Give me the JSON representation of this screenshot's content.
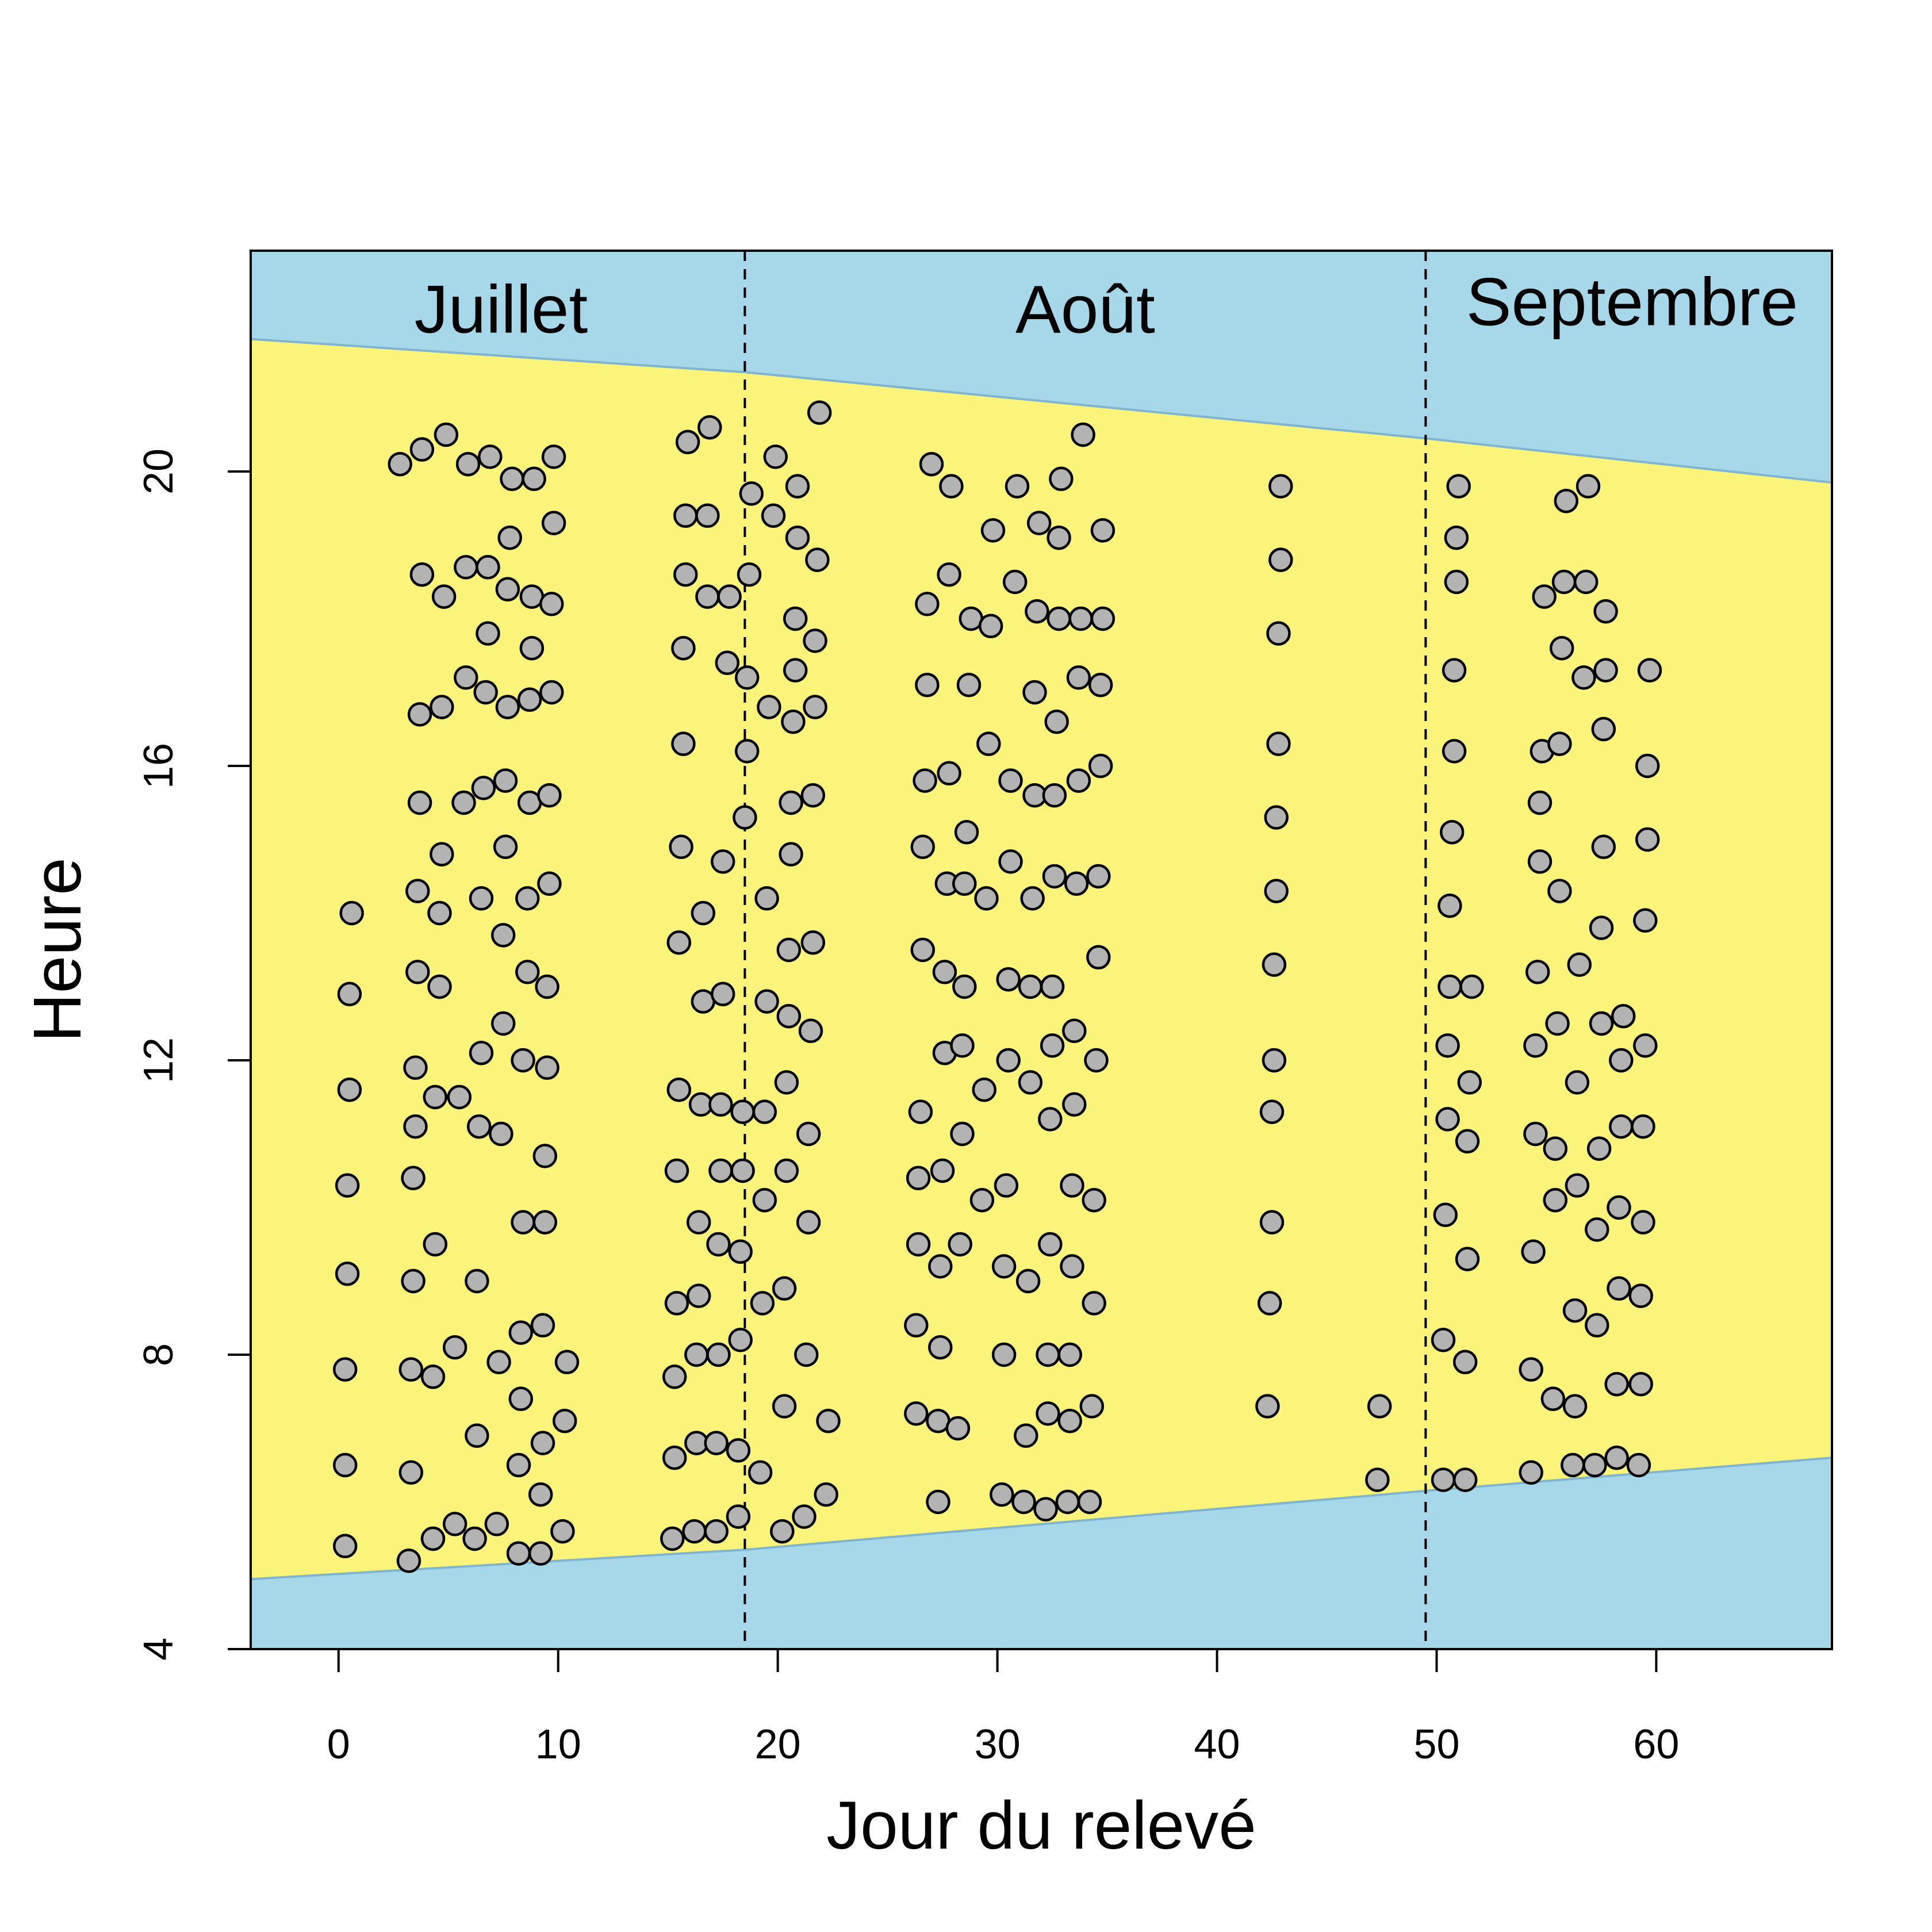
{
  "chart_data": {
    "type": "scatter",
    "xlabel": "Jour du relevé",
    "ylabel": "Heure",
    "xlim": [
      -4,
      68
    ],
    "ylim": [
      4,
      23
    ],
    "x_ticks": [
      0,
      10,
      20,
      30,
      40,
      50,
      60
    ],
    "y_ticks": [
      4,
      8,
      12,
      16,
      20
    ],
    "month_boundaries": [
      18.5,
      49.5
    ],
    "months": [
      {
        "label": "Juillet",
        "x": 7.4,
        "y": 22.2
      },
      {
        "label": "Août",
        "x": 34.0,
        "y": 22.2
      },
      {
        "label": "Septembre",
        "x": 58.9,
        "y": 22.3
      }
    ],
    "daylight": {
      "x": [
        -4,
        18.5,
        49.5,
        68
      ],
      "sunrise": [
        4.95,
        5.35,
        6.15,
        6.6
      ],
      "sunset": [
        21.8,
        21.35,
        20.45,
        19.85
      ]
    },
    "colors": {
      "night": "#a6d8ea",
      "day": "#fbf47a",
      "boundary": "#7fb5d0",
      "point_fill": "#b3b3b3",
      "point_stroke": "#000000"
    },
    "points": [
      [
        0.3,
        5.4
      ],
      [
        0.3,
        6.5
      ],
      [
        0.3,
        7.8
      ],
      [
        0.4,
        9.1
      ],
      [
        0.4,
        10.3
      ],
      [
        0.5,
        11.6
      ],
      [
        0.5,
        12.9
      ],
      [
        0.6,
        14.0
      ],
      [
        2.8,
        20.1
      ],
      [
        3.2,
        5.2
      ],
      [
        3.3,
        6.4
      ],
      [
        3.3,
        7.8
      ],
      [
        3.4,
        9.0
      ],
      [
        3.4,
        10.4
      ],
      [
        3.5,
        11.1
      ],
      [
        3.5,
        11.9
      ],
      [
        3.6,
        13.2
      ],
      [
        3.6,
        14.3
      ],
      [
        3.7,
        15.5
      ],
      [
        3.7,
        16.7
      ],
      [
        3.8,
        18.6
      ],
      [
        3.8,
        20.3
      ],
      [
        4.3,
        5.5
      ],
      [
        4.3,
        7.7
      ],
      [
        4.4,
        9.5
      ],
      [
        4.4,
        11.5
      ],
      [
        4.6,
        13.0
      ],
      [
        4.6,
        14.0
      ],
      [
        4.7,
        14.8
      ],
      [
        4.7,
        16.8
      ],
      [
        4.8,
        18.3
      ],
      [
        4.9,
        20.5
      ],
      [
        5.3,
        5.7
      ],
      [
        5.3,
        8.1
      ],
      [
        5.5,
        11.5
      ],
      [
        5.7,
        15.5
      ],
      [
        5.8,
        17.2
      ],
      [
        5.8,
        18.7
      ],
      [
        5.9,
        20.1
      ],
      [
        6.2,
        5.5
      ],
      [
        6.3,
        6.9
      ],
      [
        6.3,
        9.0
      ],
      [
        6.4,
        11.1
      ],
      [
        6.5,
        12.1
      ],
      [
        6.5,
        14.2
      ],
      [
        6.6,
        15.7
      ],
      [
        6.7,
        17.0
      ],
      [
        6.8,
        17.8
      ],
      [
        6.8,
        18.7
      ],
      [
        6.9,
        20.2
      ],
      [
        7.2,
        5.7
      ],
      [
        7.3,
        7.9
      ],
      [
        7.4,
        11.0
      ],
      [
        7.5,
        12.5
      ],
      [
        7.5,
        13.7
      ],
      [
        7.6,
        14.9
      ],
      [
        7.6,
        15.8
      ],
      [
        7.7,
        16.8
      ],
      [
        7.7,
        18.4
      ],
      [
        7.8,
        19.1
      ],
      [
        7.9,
        19.9
      ],
      [
        8.2,
        5.3
      ],
      [
        8.2,
        6.5
      ],
      [
        8.3,
        7.4
      ],
      [
        8.3,
        8.3
      ],
      [
        8.4,
        9.8
      ],
      [
        8.4,
        12.0
      ],
      [
        8.6,
        13.2
      ],
      [
        8.6,
        14.2
      ],
      [
        8.7,
        15.5
      ],
      [
        8.7,
        16.9
      ],
      [
        8.8,
        17.6
      ],
      [
        8.8,
        18.3
      ],
      [
        8.9,
        19.9
      ],
      [
        9.2,
        5.3
      ],
      [
        9.2,
        6.1
      ],
      [
        9.3,
        6.8
      ],
      [
        9.3,
        8.4
      ],
      [
        9.4,
        9.8
      ],
      [
        9.4,
        10.7
      ],
      [
        9.5,
        11.9
      ],
      [
        9.5,
        13.0
      ],
      [
        9.6,
        14.4
      ],
      [
        9.6,
        15.6
      ],
      [
        9.7,
        17.0
      ],
      [
        9.7,
        18.2
      ],
      [
        9.8,
        19.3
      ],
      [
        9.8,
        20.2
      ],
      [
        10.2,
        5.6
      ],
      [
        10.3,
        7.1
      ],
      [
        10.4,
        7.9
      ],
      [
        15.2,
        5.5
      ],
      [
        15.3,
        6.6
      ],
      [
        15.3,
        7.7
      ],
      [
        15.4,
        8.7
      ],
      [
        15.4,
        10.5
      ],
      [
        15.5,
        11.6
      ],
      [
        15.5,
        13.6
      ],
      [
        15.6,
        14.9
      ],
      [
        15.7,
        16.3
      ],
      [
        15.7,
        17.6
      ],
      [
        15.8,
        18.6
      ],
      [
        15.8,
        19.4
      ],
      [
        15.9,
        20.4
      ],
      [
        16.2,
        5.6
      ],
      [
        16.3,
        6.8
      ],
      [
        16.3,
        8.0
      ],
      [
        16.4,
        8.8
      ],
      [
        16.4,
        9.8
      ],
      [
        16.5,
        11.4
      ],
      [
        16.6,
        12.8
      ],
      [
        16.6,
        14.0
      ],
      [
        16.8,
        18.3
      ],
      [
        16.8,
        19.4
      ],
      [
        16.9,
        20.6
      ],
      [
        17.2,
        5.6
      ],
      [
        17.2,
        6.8
      ],
      [
        17.3,
        8.0
      ],
      [
        17.3,
        9.5
      ],
      [
        17.4,
        10.5
      ],
      [
        17.4,
        11.4
      ],
      [
        17.5,
        12.9
      ],
      [
        17.5,
        14.7
      ],
      [
        17.7,
        17.4
      ],
      [
        17.8,
        18.3
      ],
      [
        18.2,
        5.8
      ],
      [
        18.2,
        6.7
      ],
      [
        18.3,
        8.2
      ],
      [
        18.3,
        9.4
      ],
      [
        18.4,
        10.5
      ],
      [
        18.4,
        11.3
      ],
      [
        18.5,
        15.3
      ],
      [
        18.6,
        16.2
      ],
      [
        18.6,
        17.2
      ],
      [
        18.7,
        18.6
      ],
      [
        18.8,
        19.7
      ],
      [
        19.2,
        6.4
      ],
      [
        19.3,
        8.7
      ],
      [
        19.4,
        10.1
      ],
      [
        19.4,
        11.3
      ],
      [
        19.5,
        12.8
      ],
      [
        19.5,
        14.2
      ],
      [
        19.6,
        16.8
      ],
      [
        19.8,
        19.4
      ],
      [
        19.9,
        20.2
      ],
      [
        20.2,
        5.6
      ],
      [
        20.3,
        7.3
      ],
      [
        20.3,
        8.9
      ],
      [
        20.4,
        10.5
      ],
      [
        20.4,
        11.7
      ],
      [
        20.5,
        12.6
      ],
      [
        20.5,
        13.5
      ],
      [
        20.6,
        14.8
      ],
      [
        20.6,
        15.5
      ],
      [
        20.7,
        16.6
      ],
      [
        20.8,
        17.3
      ],
      [
        20.8,
        18.0
      ],
      [
        20.9,
        19.1
      ],
      [
        20.9,
        19.8
      ],
      [
        21.2,
        5.8
      ],
      [
        21.3,
        8.0
      ],
      [
        21.4,
        9.8
      ],
      [
        21.4,
        11.0
      ],
      [
        21.5,
        12.4
      ],
      [
        21.6,
        13.6
      ],
      [
        21.6,
        15.6
      ],
      [
        21.7,
        16.8
      ],
      [
        21.7,
        17.7
      ],
      [
        21.8,
        18.8
      ],
      [
        21.9,
        20.8
      ],
      [
        22.2,
        6.1
      ],
      [
        22.3,
        7.1
      ],
      [
        26.3,
        7.2
      ],
      [
        26.3,
        8.4
      ],
      [
        26.4,
        9.5
      ],
      [
        26.4,
        10.4
      ],
      [
        26.5,
        11.3
      ],
      [
        26.6,
        13.5
      ],
      [
        26.6,
        14.9
      ],
      [
        26.7,
        15.8
      ],
      [
        26.8,
        17.1
      ],
      [
        26.8,
        18.2
      ],
      [
        27.0,
        20.1
      ],
      [
        27.3,
        6.0
      ],
      [
        27.3,
        7.1
      ],
      [
        27.4,
        8.1
      ],
      [
        27.4,
        9.2
      ],
      [
        27.5,
        10.5
      ],
      [
        27.6,
        12.1
      ],
      [
        27.6,
        13.2
      ],
      [
        27.7,
        14.4
      ],
      [
        27.8,
        15.9
      ],
      [
        27.8,
        18.6
      ],
      [
        27.9,
        19.8
      ],
      [
        28.2,
        7.0
      ],
      [
        28.3,
        9.5
      ],
      [
        28.4,
        11.0
      ],
      [
        28.4,
        12.2
      ],
      [
        28.5,
        13.0
      ],
      [
        28.5,
        14.4
      ],
      [
        28.6,
        15.1
      ],
      [
        28.7,
        17.1
      ],
      [
        28.8,
        18.0
      ],
      [
        29.3,
        10.1
      ],
      [
        29.4,
        11.6
      ],
      [
        29.5,
        14.2
      ],
      [
        29.6,
        16.3
      ],
      [
        29.7,
        17.9
      ],
      [
        29.8,
        19.2
      ],
      [
        30.2,
        6.1
      ],
      [
        30.3,
        8.0
      ],
      [
        30.3,
        9.2
      ],
      [
        30.4,
        10.3
      ],
      [
        30.5,
        12.0
      ],
      [
        30.5,
        13.1
      ],
      [
        30.6,
        14.7
      ],
      [
        30.6,
        15.8
      ],
      [
        30.8,
        18.5
      ],
      [
        30.9,
        19.8
      ],
      [
        31.2,
        6.0
      ],
      [
        31.3,
        6.9
      ],
      [
        31.4,
        9.0
      ],
      [
        31.5,
        11.7
      ],
      [
        31.5,
        13.0
      ],
      [
        31.6,
        14.2
      ],
      [
        31.7,
        15.6
      ],
      [
        31.7,
        17.0
      ],
      [
        31.8,
        18.1
      ],
      [
        31.9,
        19.3
      ],
      [
        32.2,
        5.9
      ],
      [
        32.3,
        7.2
      ],
      [
        32.3,
        8.0
      ],
      [
        32.4,
        9.5
      ],
      [
        32.4,
        11.2
      ],
      [
        32.5,
        12.2
      ],
      [
        32.5,
        13.0
      ],
      [
        32.6,
        14.5
      ],
      [
        32.6,
        15.6
      ],
      [
        32.7,
        16.6
      ],
      [
        32.8,
        18.0
      ],
      [
        32.8,
        19.1
      ],
      [
        32.9,
        19.9
      ],
      [
        33.2,
        6.0
      ],
      [
        33.3,
        7.1
      ],
      [
        33.3,
        8.0
      ],
      [
        33.4,
        9.2
      ],
      [
        33.4,
        10.3
      ],
      [
        33.5,
        11.4
      ],
      [
        33.5,
        12.4
      ],
      [
        33.6,
        14.4
      ],
      [
        33.7,
        15.8
      ],
      [
        33.7,
        17.2
      ],
      [
        33.8,
        18.0
      ],
      [
        33.9,
        20.5
      ],
      [
        34.2,
        6.0
      ],
      [
        34.3,
        7.3
      ],
      [
        34.4,
        8.7
      ],
      [
        34.4,
        10.1
      ],
      [
        34.5,
        12.0
      ],
      [
        34.6,
        13.4
      ],
      [
        34.6,
        14.5
      ],
      [
        34.7,
        16.0
      ],
      [
        34.7,
        17.1
      ],
      [
        34.8,
        18.0
      ],
      [
        34.8,
        19.2
      ],
      [
        42.3,
        7.3
      ],
      [
        42.4,
        8.7
      ],
      [
        42.5,
        9.8
      ],
      [
        42.5,
        11.3
      ],
      [
        42.6,
        12.0
      ],
      [
        42.6,
        13.3
      ],
      [
        42.7,
        14.3
      ],
      [
        42.7,
        15.3
      ],
      [
        42.8,
        16.3
      ],
      [
        42.8,
        17.8
      ],
      [
        42.9,
        18.8
      ],
      [
        42.9,
        19.8
      ],
      [
        47.3,
        6.3
      ],
      [
        47.4,
        7.3
      ],
      [
        50.3,
        6.3
      ],
      [
        50.3,
        8.2
      ],
      [
        50.4,
        9.9
      ],
      [
        50.5,
        11.2
      ],
      [
        50.5,
        12.2
      ],
      [
        50.6,
        13.0
      ],
      [
        50.6,
        14.1
      ],
      [
        50.7,
        15.1
      ],
      [
        50.8,
        16.2
      ],
      [
        50.8,
        17.3
      ],
      [
        50.9,
        18.5
      ],
      [
        50.9,
        19.1
      ],
      [
        51.0,
        19.8
      ],
      [
        51.3,
        6.3
      ],
      [
        51.3,
        7.9
      ],
      [
        51.4,
        9.3
      ],
      [
        51.4,
        10.9
      ],
      [
        51.5,
        11.7
      ],
      [
        51.6,
        13.0
      ],
      [
        54.3,
        6.4
      ],
      [
        54.3,
        7.8
      ],
      [
        54.4,
        9.4
      ],
      [
        54.5,
        11.0
      ],
      [
        54.5,
        12.2
      ],
      [
        54.6,
        13.2
      ],
      [
        54.7,
        14.7
      ],
      [
        54.7,
        15.5
      ],
      [
        54.8,
        16.2
      ],
      [
        54.9,
        18.3
      ],
      [
        55.3,
        7.4
      ],
      [
        55.4,
        10.1
      ],
      [
        55.4,
        10.8
      ],
      [
        55.5,
        12.5
      ],
      [
        55.6,
        14.3
      ],
      [
        55.6,
        16.3
      ],
      [
        55.7,
        17.6
      ],
      [
        55.8,
        18.5
      ],
      [
        55.9,
        19.6
      ],
      [
        56.2,
        6.5
      ],
      [
        56.3,
        7.3
      ],
      [
        56.3,
        8.6
      ],
      [
        56.4,
        10.3
      ],
      [
        56.4,
        11.7
      ],
      [
        56.5,
        13.3
      ],
      [
        56.7,
        17.2
      ],
      [
        56.8,
        18.5
      ],
      [
        56.9,
        19.8
      ],
      [
        57.2,
        6.5
      ],
      [
        57.3,
        8.4
      ],
      [
        57.3,
        9.7
      ],
      [
        57.4,
        10.8
      ],
      [
        57.5,
        12.5
      ],
      [
        57.5,
        13.8
      ],
      [
        57.6,
        14.9
      ],
      [
        57.6,
        16.5
      ],
      [
        57.7,
        17.3
      ],
      [
        57.7,
        18.1
      ],
      [
        58.2,
        6.6
      ],
      [
        58.2,
        7.6
      ],
      [
        58.3,
        8.9
      ],
      [
        58.3,
        10.0
      ],
      [
        58.4,
        11.1
      ],
      [
        58.4,
        12.0
      ],
      [
        58.5,
        12.6
      ],
      [
        59.2,
        6.5
      ],
      [
        59.3,
        7.6
      ],
      [
        59.3,
        8.8
      ],
      [
        59.4,
        9.8
      ],
      [
        59.4,
        11.1
      ],
      [
        59.5,
        12.2
      ],
      [
        59.5,
        13.9
      ],
      [
        59.6,
        15.0
      ],
      [
        59.6,
        16.0
      ],
      [
        59.7,
        17.3
      ]
    ]
  }
}
